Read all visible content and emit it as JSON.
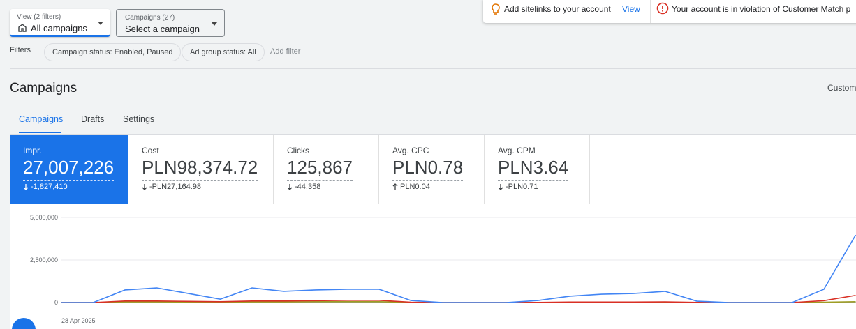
{
  "filters": {
    "view_label": "View (2 filters)",
    "view_value": "All campaigns",
    "campaigns_label": "Campaigns (27)",
    "campaigns_value": "Select a campaign",
    "label": "Filters",
    "chips": [
      "Campaign status: Enabled, Paused",
      "Ad group status: All"
    ],
    "add": "Add filter"
  },
  "notifications": [
    {
      "text": "Add sitelinks to your account",
      "link": "View"
    },
    {
      "text": "Your account is in violation of Customer Match p"
    }
  ],
  "page_title": "Campaigns",
  "customize": "Custom",
  "tabs": [
    "Campaigns",
    "Drafts",
    "Settings"
  ],
  "metrics": [
    {
      "label": "Impr.",
      "value": "27,007,226",
      "change": "-1,827,410",
      "direction": "down"
    },
    {
      "label": "Cost",
      "value": "PLN98,374.72",
      "change": "-PLN27,164.98",
      "direction": "down"
    },
    {
      "label": "Clicks",
      "value": "125,867",
      "change": "-44,358",
      "direction": "down"
    },
    {
      "label": "Avg. CPC",
      "value": "PLN0.78",
      "change": "PLN0.04",
      "direction": "up"
    },
    {
      "label": "Avg. CPM",
      "value": "PLN3.64",
      "change": "-PLN0.71",
      "direction": "down"
    }
  ],
  "chart_data": {
    "type": "line",
    "categories": [
      "28 Apr 2025",
      null,
      null,
      null,
      null,
      null,
      null,
      null,
      null,
      null,
      null,
      null,
      null,
      null,
      null,
      null,
      null,
      null,
      null,
      null,
      null,
      null,
      null,
      null,
      null,
      null
    ],
    "series": [
      {
        "color": "#4285f4",
        "values": [
          0,
          0,
          740000,
          860000,
          530000,
          200000,
          860000,
          660000,
          740000,
          780000,
          780000,
          120000,
          0,
          0,
          0,
          120000,
          370000,
          490000,
          530000,
          660000,
          80000,
          0,
          0,
          0,
          780000,
          3970000
        ]
      },
      {
        "color": "#d93025",
        "values": [
          0,
          0,
          90000,
          90000,
          70000,
          50000,
          90000,
          90000,
          110000,
          130000,
          130000,
          20000,
          0,
          0,
          0,
          10000,
          30000,
          30000,
          30000,
          40000,
          10000,
          0,
          0,
          0,
          110000,
          420000
        ]
      },
      {
        "color": "#9e9d24",
        "values": [
          0,
          0,
          40000,
          40000,
          30000,
          20000,
          40000,
          40000,
          50000,
          50000,
          50000,
          10000,
          0,
          0,
          0,
          5000,
          10000,
          10000,
          10000,
          20000,
          5000,
          0,
          0,
          0,
          20000,
          50000
        ]
      }
    ],
    "ylim": [
      0,
      5000000
    ],
    "yticks": [
      0,
      {
        "value": 2500000,
        "label": "2,500,000"
      },
      {
        "value": 5000000,
        "label": "5,000,000"
      }
    ],
    "grid": true
  }
}
